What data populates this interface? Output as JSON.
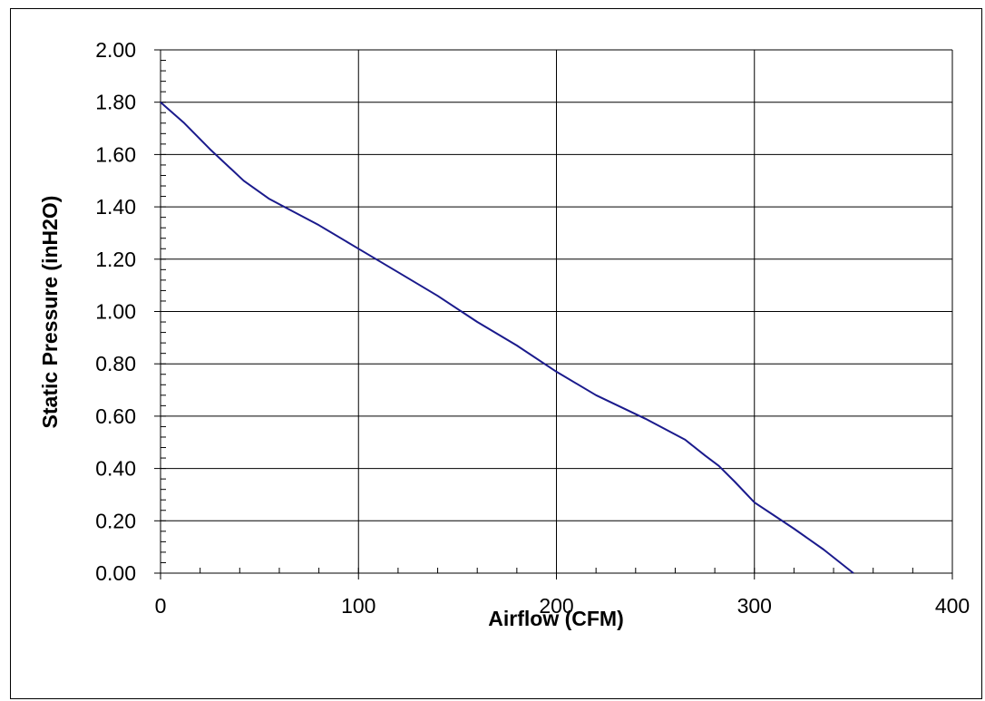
{
  "chart_data": {
    "type": "line",
    "xlabel": "Airflow (CFM)",
    "ylabel": "Static Pressure (inH2O)",
    "xlim": [
      0,
      400
    ],
    "ylim": [
      0,
      2.0
    ],
    "x_ticks": [
      "0",
      "100",
      "200",
      "300",
      "400"
    ],
    "y_ticks": [
      "0.00",
      "0.20",
      "0.40",
      "0.60",
      "0.80",
      "1.00",
      "1.20",
      "1.40",
      "1.60",
      "1.80",
      "2.00"
    ],
    "grid": true,
    "legend": "none",
    "line_color": "#1a1a8c",
    "series": [
      {
        "x": [
          0,
          12,
          25,
          42,
          55,
          65,
          80,
          100,
          120,
          140,
          160,
          180,
          200,
          220,
          245,
          265,
          275,
          282,
          290,
          300,
          310,
          320,
          335,
          350
        ],
        "y": [
          1.8,
          1.72,
          1.62,
          1.5,
          1.43,
          1.39,
          1.33,
          1.24,
          1.15,
          1.06,
          0.96,
          0.87,
          0.77,
          0.68,
          0.59,
          0.51,
          0.45,
          0.41,
          0.35,
          0.27,
          0.22,
          0.17,
          0.09,
          0.0
        ]
      }
    ]
  }
}
